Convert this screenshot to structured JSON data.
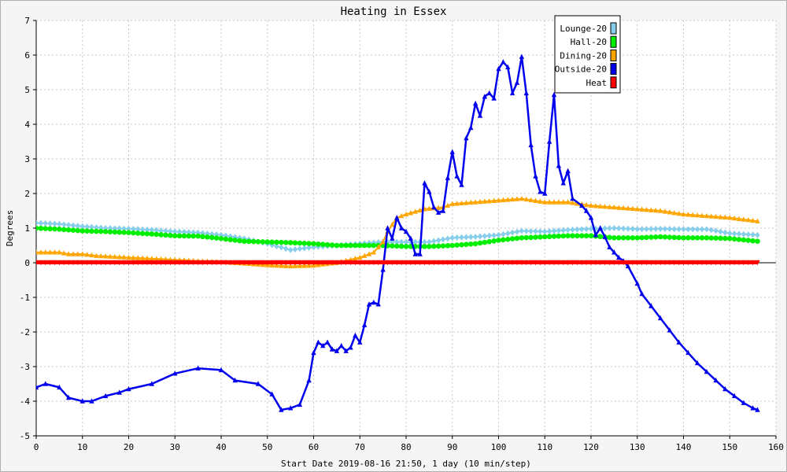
{
  "colors": {
    "background": "#f5f5f5",
    "grid": "#c8c8c8",
    "axis": "#000000",
    "lounge": "#87ceeb",
    "hall": "#00ee00",
    "dining": "#ffa500",
    "outside": "#0000ee",
    "heat": "#ff0000"
  },
  "chart_data": {
    "type": "line",
    "title": "Heating in Essex",
    "xlabel": "Start Date 2019-08-16 21:50, 1 day (10 min/step)",
    "ylabel": "Degrees",
    "xlim": [
      0,
      160
    ],
    "ylim": [
      -5,
      7
    ],
    "x_ticks": [
      0,
      10,
      20,
      30,
      40,
      50,
      60,
      70,
      80,
      90,
      100,
      110,
      120,
      130,
      140,
      150,
      160
    ],
    "y_ticks": [
      -5,
      -4,
      -3,
      -2,
      -1,
      0,
      1,
      2,
      3,
      4,
      5,
      6,
      7
    ],
    "grid": true,
    "legend_position": "top-right",
    "series": [
      {
        "name": "Lounge-20",
        "color": "#87ceeb",
        "marker": "diamond",
        "points": [
          [
            0,
            1.15
          ],
          [
            5,
            1.12
          ],
          [
            10,
            1.05
          ],
          [
            15,
            1.0
          ],
          [
            20,
            0.98
          ],
          [
            25,
            0.95
          ],
          [
            30,
            0.9
          ],
          [
            35,
            0.87
          ],
          [
            40,
            0.8
          ],
          [
            45,
            0.7
          ],
          [
            50,
            0.55
          ],
          [
            55,
            0.37
          ],
          [
            60,
            0.45
          ],
          [
            65,
            0.5
          ],
          [
            70,
            0.55
          ],
          [
            75,
            0.6
          ],
          [
            80,
            0.6
          ],
          [
            85,
            0.6
          ],
          [
            90,
            0.72
          ],
          [
            95,
            0.75
          ],
          [
            100,
            0.8
          ],
          [
            105,
            0.92
          ],
          [
            110,
            0.9
          ],
          [
            115,
            0.95
          ],
          [
            120,
            0.98
          ],
          [
            125,
            1.0
          ],
          [
            130,
            0.97
          ],
          [
            135,
            0.98
          ],
          [
            140,
            0.97
          ],
          [
            145,
            0.97
          ],
          [
            150,
            0.85
          ],
          [
            156,
            0.8
          ]
        ]
      },
      {
        "name": "Hall-20",
        "color": "#00ee00",
        "marker": "circle",
        "points": [
          [
            0,
            1.0
          ],
          [
            5,
            0.97
          ],
          [
            10,
            0.92
          ],
          [
            15,
            0.9
          ],
          [
            20,
            0.87
          ],
          [
            25,
            0.83
          ],
          [
            30,
            0.78
          ],
          [
            35,
            0.77
          ],
          [
            40,
            0.7
          ],
          [
            45,
            0.62
          ],
          [
            50,
            0.6
          ],
          [
            55,
            0.58
          ],
          [
            60,
            0.55
          ],
          [
            65,
            0.5
          ],
          [
            70,
            0.5
          ],
          [
            75,
            0.5
          ],
          [
            80,
            0.47
          ],
          [
            85,
            0.47
          ],
          [
            90,
            0.5
          ],
          [
            95,
            0.55
          ],
          [
            100,
            0.65
          ],
          [
            105,
            0.72
          ],
          [
            110,
            0.75
          ],
          [
            115,
            0.78
          ],
          [
            120,
            0.78
          ],
          [
            125,
            0.72
          ],
          [
            130,
            0.72
          ],
          [
            135,
            0.75
          ],
          [
            140,
            0.72
          ],
          [
            145,
            0.72
          ],
          [
            150,
            0.7
          ],
          [
            156,
            0.62
          ]
        ]
      },
      {
        "name": "Dining-20",
        "color": "#ffa500",
        "marker": "triangle",
        "points": [
          [
            0,
            0.3
          ],
          [
            5,
            0.3
          ],
          [
            7,
            0.25
          ],
          [
            10,
            0.25
          ],
          [
            13,
            0.2
          ],
          [
            20,
            0.15
          ],
          [
            28,
            0.1
          ],
          [
            35,
            0.05
          ],
          [
            40,
            0.02
          ],
          [
            45,
            -0.02
          ],
          [
            50,
            -0.07
          ],
          [
            55,
            -0.1
          ],
          [
            60,
            -0.08
          ],
          [
            65,
            0.0
          ],
          [
            70,
            0.15
          ],
          [
            73,
            0.3
          ],
          [
            75,
            0.6
          ],
          [
            76,
            0.9
          ],
          [
            78,
            1.3
          ],
          [
            80,
            1.4
          ],
          [
            84,
            1.55
          ],
          [
            88,
            1.6
          ],
          [
            90,
            1.7
          ],
          [
            95,
            1.75
          ],
          [
            100,
            1.8
          ],
          [
            105,
            1.85
          ],
          [
            110,
            1.75
          ],
          [
            115,
            1.75
          ],
          [
            120,
            1.65
          ],
          [
            125,
            1.6
          ],
          [
            130,
            1.55
          ],
          [
            135,
            1.5
          ],
          [
            140,
            1.4
          ],
          [
            145,
            1.35
          ],
          [
            150,
            1.3
          ],
          [
            156,
            1.2
          ]
        ]
      },
      {
        "name": "Outside-20",
        "color": "#0000ee",
        "marker": "triangle",
        "points": [
          [
            0,
            -3.6
          ],
          [
            2,
            -3.5
          ],
          [
            5,
            -3.6
          ],
          [
            7,
            -3.9
          ],
          [
            10,
            -4.0
          ],
          [
            12,
            -4.0
          ],
          [
            15,
            -3.85
          ],
          [
            18,
            -3.75
          ],
          [
            20,
            -3.65
          ],
          [
            25,
            -3.5
          ],
          [
            30,
            -3.2
          ],
          [
            35,
            -3.05
          ],
          [
            40,
            -3.1
          ],
          [
            43,
            -3.4
          ],
          [
            48,
            -3.5
          ],
          [
            51,
            -3.8
          ],
          [
            53,
            -4.25
          ],
          [
            55,
            -4.2
          ],
          [
            57,
            -4.1
          ],
          [
            59,
            -3.4
          ],
          [
            60,
            -2.6
          ],
          [
            61,
            -2.3
          ],
          [
            62,
            -2.4
          ],
          [
            63,
            -2.3
          ],
          [
            64,
            -2.5
          ],
          [
            65,
            -2.55
          ],
          [
            66,
            -2.4
          ],
          [
            67,
            -2.55
          ],
          [
            68,
            -2.45
          ],
          [
            69,
            -2.1
          ],
          [
            70,
            -2.3
          ],
          [
            71,
            -1.8
          ],
          [
            72,
            -1.2
          ],
          [
            73,
            -1.15
          ],
          [
            74,
            -1.2
          ],
          [
            75,
            -0.2
          ],
          [
            76,
            1.0
          ],
          [
            77,
            0.7
          ],
          [
            78,
            1.3
          ],
          [
            79,
            1.0
          ],
          [
            80,
            0.9
          ],
          [
            81,
            0.7
          ],
          [
            82,
            0.25
          ],
          [
            83,
            0.25
          ],
          [
            84,
            2.3
          ],
          [
            85,
            2.05
          ],
          [
            86,
            1.6
          ],
          [
            87,
            1.45
          ],
          [
            88,
            1.5
          ],
          [
            89,
            2.45
          ],
          [
            90,
            3.2
          ],
          [
            91,
            2.5
          ],
          [
            92,
            2.25
          ],
          [
            93,
            3.6
          ],
          [
            94,
            3.9
          ],
          [
            95,
            4.6
          ],
          [
            96,
            4.25
          ],
          [
            97,
            4.8
          ],
          [
            98,
            4.9
          ],
          [
            99,
            4.75
          ],
          [
            100,
            5.6
          ],
          [
            101,
            5.8
          ],
          [
            102,
            5.65
          ],
          [
            103,
            4.9
          ],
          [
            104,
            5.2
          ],
          [
            105,
            5.95
          ],
          [
            106,
            4.9
          ],
          [
            107,
            3.4
          ],
          [
            108,
            2.5
          ],
          [
            109,
            2.05
          ],
          [
            110,
            2.0
          ],
          [
            111,
            3.5
          ],
          [
            112,
            4.85
          ],
          [
            113,
            2.8
          ],
          [
            114,
            2.3
          ],
          [
            115,
            2.65
          ],
          [
            116,
            1.85
          ],
          [
            118,
            1.65
          ],
          [
            119,
            1.5
          ],
          [
            120,
            1.3
          ],
          [
            121,
            0.8
          ],
          [
            122,
            1.0
          ],
          [
            123,
            0.75
          ],
          [
            124,
            0.45
          ],
          [
            125,
            0.3
          ],
          [
            126,
            0.15
          ],
          [
            127,
            0.05
          ],
          [
            128,
            -0.1
          ],
          [
            130,
            -0.6
          ],
          [
            131,
            -0.9
          ],
          [
            133,
            -1.25
          ],
          [
            135,
            -1.6
          ],
          [
            137,
            -1.95
          ],
          [
            139,
            -2.3
          ],
          [
            141,
            -2.6
          ],
          [
            143,
            -2.9
          ],
          [
            145,
            -3.15
          ],
          [
            147,
            -3.4
          ],
          [
            149,
            -3.65
          ],
          [
            151,
            -3.85
          ],
          [
            153,
            -4.05
          ],
          [
            155,
            -4.2
          ],
          [
            156,
            -4.25
          ]
        ]
      },
      {
        "name": "Heat",
        "color": "#ff0000",
        "marker": "triangle-down",
        "points": [
          [
            0,
            0.0
          ],
          [
            156,
            0.0
          ]
        ]
      }
    ]
  }
}
